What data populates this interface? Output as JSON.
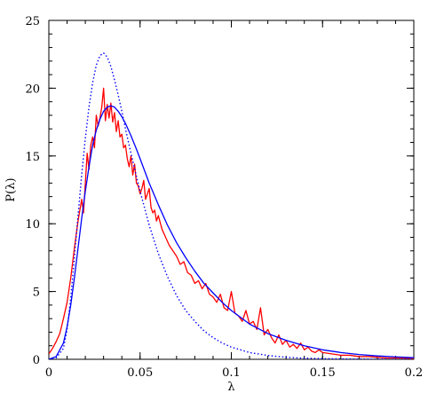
{
  "chart_data": {
    "type": "line",
    "title": "",
    "xlabel": "λ",
    "ylabel": "P(λ)",
    "xlim": [
      0,
      0.2
    ],
    "ylim": [
      0,
      25
    ],
    "x_ticks": [
      {
        "value": 0,
        "label": "0"
      },
      {
        "value": 0.05,
        "label": "0.05"
      },
      {
        "value": 0.1,
        "label": "0.1"
      },
      {
        "value": 0.15,
        "label": "0.15"
      },
      {
        "value": 0.2,
        "label": "0.2"
      }
    ],
    "y_ticks": [
      {
        "value": 0,
        "label": "0"
      },
      {
        "value": 5,
        "label": "5"
      },
      {
        "value": 10,
        "label": "10"
      },
      {
        "value": 15,
        "label": "15"
      },
      {
        "value": 20,
        "label": "20"
      },
      {
        "value": 25,
        "label": "25"
      }
    ],
    "grid": false,
    "legend": null,
    "series": [
      {
        "style": "solid-red-noisy",
        "color": "#ff0000",
        "x": [
          0.0,
          0.002,
          0.004,
          0.006,
          0.008,
          0.01,
          0.012,
          0.014,
          0.016,
          0.018,
          0.019,
          0.02,
          0.021,
          0.022,
          0.023,
          0.024,
          0.025,
          0.026,
          0.027,
          0.028,
          0.029,
          0.03,
          0.031,
          0.032,
          0.033,
          0.034,
          0.035,
          0.036,
          0.037,
          0.038,
          0.039,
          0.04,
          0.041,
          0.042,
          0.043,
          0.044,
          0.045,
          0.046,
          0.047,
          0.048,
          0.049,
          0.05,
          0.051,
          0.052,
          0.053,
          0.054,
          0.055,
          0.056,
          0.057,
          0.058,
          0.059,
          0.06,
          0.062,
          0.064,
          0.066,
          0.068,
          0.07,
          0.072,
          0.074,
          0.076,
          0.078,
          0.08,
          0.082,
          0.084,
          0.086,
          0.088,
          0.09,
          0.092,
          0.094,
          0.096,
          0.098,
          0.1,
          0.102,
          0.104,
          0.106,
          0.108,
          0.11,
          0.112,
          0.114,
          0.116,
          0.118,
          0.12,
          0.122,
          0.124,
          0.126,
          0.128,
          0.13,
          0.132,
          0.134,
          0.136,
          0.138,
          0.14,
          0.142,
          0.144,
          0.146,
          0.148,
          0.15,
          0.155,
          0.16,
          0.165,
          0.17,
          0.175,
          0.18,
          0.185,
          0.19,
          0.195,
          0.2
        ],
        "y": [
          0.4,
          0.8,
          1.3,
          1.9,
          3.0,
          4.2,
          6.0,
          8.2,
          10.2,
          11.8,
          10.8,
          13.0,
          15.2,
          14.0,
          15.8,
          16.4,
          15.6,
          18.0,
          17.2,
          17.8,
          18.6,
          20.0,
          17.6,
          18.8,
          17.8,
          18.9,
          17.5,
          18.2,
          16.8,
          17.6,
          16.4,
          16.6,
          15.6,
          15.8,
          14.8,
          14.2,
          15.0,
          13.6,
          14.4,
          13.0,
          12.8,
          12.2,
          12.6,
          13.2,
          11.8,
          12.2,
          12.6,
          11.2,
          10.8,
          11.0,
          10.2,
          10.6,
          9.6,
          9.0,
          8.4,
          8.0,
          7.6,
          7.0,
          7.2,
          6.4,
          6.2,
          5.6,
          5.8,
          5.2,
          5.6,
          4.8,
          4.6,
          4.2,
          4.8,
          3.8,
          3.6,
          5.0,
          3.4,
          3.2,
          2.8,
          3.6,
          2.6,
          2.8,
          2.2,
          3.8,
          1.8,
          2.2,
          1.6,
          1.2,
          1.8,
          1.1,
          1.4,
          0.9,
          1.1,
          0.8,
          1.2,
          0.7,
          0.9,
          0.6,
          0.5,
          0.7,
          0.5,
          0.4,
          0.3,
          0.3,
          0.2,
          0.2,
          0.15,
          0.1,
          0.1,
          0.08,
          0.05
        ]
      },
      {
        "style": "solid-blue-smooth",
        "color": "#0000ff",
        "x": [
          0.0,
          0.004,
          0.008,
          0.01,
          0.012,
          0.014,
          0.016,
          0.018,
          0.02,
          0.022,
          0.024,
          0.026,
          0.028,
          0.03,
          0.032,
          0.034,
          0.036,
          0.038,
          0.04,
          0.042,
          0.045,
          0.048,
          0.05,
          0.055,
          0.06,
          0.065,
          0.07,
          0.075,
          0.08,
          0.085,
          0.09,
          0.095,
          0.1,
          0.11,
          0.12,
          0.13,
          0.14,
          0.15,
          0.16,
          0.17,
          0.18,
          0.19,
          0.2
        ],
        "y": [
          0.0,
          0.2,
          1.2,
          2.4,
          4.0,
          6.0,
          8.2,
          10.4,
          12.4,
          14.2,
          15.8,
          16.9,
          17.7,
          18.3,
          18.6,
          18.7,
          18.6,
          18.3,
          17.9,
          17.4,
          16.5,
          15.5,
          14.8,
          13.0,
          11.4,
          9.9,
          8.6,
          7.5,
          6.5,
          5.6,
          4.9,
          4.2,
          3.6,
          2.6,
          1.9,
          1.4,
          1.0,
          0.7,
          0.5,
          0.35,
          0.25,
          0.18,
          0.12
        ]
      },
      {
        "style": "dotted-blue",
        "color": "#0000ff",
        "x": [
          0.0,
          0.004,
          0.008,
          0.01,
          0.012,
          0.014,
          0.016,
          0.018,
          0.02,
          0.022,
          0.024,
          0.026,
          0.028,
          0.03,
          0.032,
          0.034,
          0.036,
          0.038,
          0.04,
          0.042,
          0.045,
          0.048,
          0.05,
          0.055,
          0.06,
          0.065,
          0.07,
          0.075,
          0.08,
          0.085,
          0.09,
          0.095,
          0.1,
          0.11,
          0.12,
          0.13,
          0.14,
          0.15,
          0.16,
          0.17,
          0.18,
          0.19,
          0.2
        ],
        "y": [
          0.0,
          0.1,
          0.8,
          2.2,
          4.5,
          7.5,
          10.6,
          13.6,
          16.3,
          18.6,
          20.4,
          21.7,
          22.4,
          22.6,
          22.3,
          21.6,
          20.6,
          19.5,
          18.3,
          17.0,
          15.2,
          13.5,
          12.4,
          9.9,
          7.8,
          6.1,
          4.7,
          3.6,
          2.8,
          2.1,
          1.6,
          1.2,
          0.9,
          0.5,
          0.28,
          0.15,
          0.08,
          0.05,
          0.03,
          0.02,
          0.01,
          0.005,
          0.0
        ]
      }
    ]
  }
}
